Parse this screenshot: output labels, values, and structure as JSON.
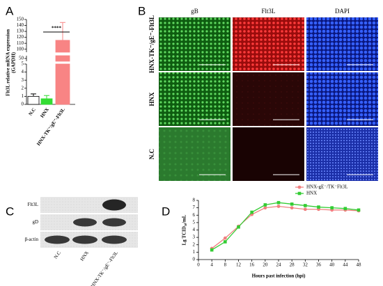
{
  "panel_labels": [
    "A",
    "B",
    "C",
    "D"
  ],
  "chart_data": [
    {
      "type": "bar",
      "y_label": [
        "Flt3L relative mRNA expression",
        "(GAPDH)"
      ],
      "categories": [
        "N.C",
        "HNX",
        "HNX-TK⁻/gE⁻-Flt3L"
      ],
      "values": [
        1,
        0.7,
        115
      ],
      "errors": [
        0.3,
        0.4,
        30
      ],
      "colors": [
        "#ffffff",
        "#33dd33",
        "#f88484"
      ],
      "y_segments": [
        {
          "ylim": [
            0,
            5
          ],
          "yticks": [
            0,
            1,
            2,
            3,
            4,
            5
          ]
        },
        {
          "ylim": [
            45,
            55
          ],
          "yticks": [
            50
          ]
        },
        {
          "ylim": [
            95,
            150
          ],
          "yticks": [
            100,
            110,
            120,
            130,
            140,
            150
          ]
        }
      ],
      "annotation": "****"
    },
    {
      "type": "line",
      "x_label": "Hours past infection (hpi)",
      "y_label": "Lg TCID₅₀/mL",
      "x": [
        4,
        8,
        12,
        16,
        20,
        24,
        28,
        32,
        36,
        40,
        44,
        48
      ],
      "series": [
        {
          "name": "HNX-gE⁻/TK⁻Flt3L",
          "color": "#f08080",
          "marker": "circle",
          "values": [
            1.5,
            2.9,
            4.5,
            6.1,
            7.0,
            7.2,
            7.0,
            6.8,
            6.8,
            6.7,
            6.7,
            6.6
          ]
        },
        {
          "name": "HNX",
          "color": "#33cc33",
          "marker": "square",
          "values": [
            1.3,
            2.4,
            4.4,
            6.4,
            7.4,
            7.7,
            7.5,
            7.3,
            7.1,
            7.0,
            6.9,
            6.7
          ]
        }
      ],
      "xlim": [
        0,
        48
      ],
      "xticks": [
        0,
        4,
        8,
        12,
        16,
        20,
        24,
        28,
        32,
        36,
        40,
        44,
        48
      ],
      "ylim": [
        0,
        8
      ],
      "yticks": [
        0,
        1,
        2,
        3,
        4,
        5,
        6,
        7,
        8
      ]
    }
  ],
  "micrographs": {
    "columns": [
      "gB",
      "Flt3L",
      "DAPI"
    ],
    "rows": [
      "HNX-TK⁻/gE⁻-Flt3L",
      "HNX",
      "N.C"
    ]
  },
  "blot": {
    "proteins": [
      "Flt3L",
      "gD",
      "β-actin"
    ],
    "lanes": [
      "N.C",
      "HNX",
      "HNX-TK⁻/gE⁻-Flt3L"
    ]
  }
}
